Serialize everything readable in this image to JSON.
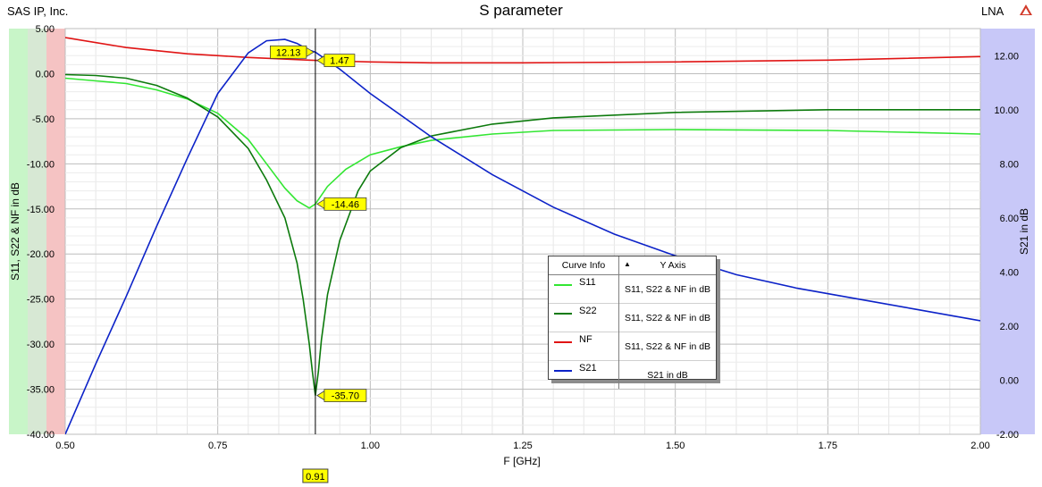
{
  "header": {
    "company": "SAS IP, Inc.",
    "design": "LNA"
  },
  "chart_data": {
    "type": "line",
    "title": "S parameter",
    "xlabel": "F [GHz]",
    "ylabel": "S11, S22 & NF in dB",
    "ylabel_right": "S21 in dB",
    "xlim": [
      0.5,
      2.0
    ],
    "ylim": [
      -40,
      5
    ],
    "ylim_right": [
      -2,
      13
    ],
    "grid": true,
    "x_ticks": [
      "0.50",
      "0.75",
      "1.00",
      "1.25",
      "1.50",
      "1.75",
      "2.00"
    ],
    "y_ticks": [
      "5.00",
      "0.00",
      "-5.00",
      "-10.00",
      "-15.00",
      "-20.00",
      "-25.00",
      "-30.00",
      "-35.00",
      "-40.00"
    ],
    "y_ticks_right": [
      "12.00",
      "10.00",
      "8.00",
      "6.00",
      "4.00",
      "2.00",
      "0.00",
      "-2.00"
    ],
    "cursor_x": 0.91,
    "cursor_label": "0.91",
    "series": [
      {
        "name": "S11",
        "axis": "left",
        "color": "#32e632",
        "x": [
          0.5,
          0.55,
          0.6,
          0.65,
          0.7,
          0.75,
          0.8,
          0.83,
          0.86,
          0.88,
          0.9,
          0.91,
          0.93,
          0.96,
          1.0,
          1.05,
          1.1,
          1.2,
          1.3,
          1.5,
          1.75,
          2.0
        ],
        "y": [
          -0.5,
          -0.8,
          -1.1,
          -1.8,
          -2.8,
          -4.4,
          -7.3,
          -10.0,
          -12.7,
          -14.1,
          -14.9,
          -14.46,
          -12.5,
          -10.6,
          -9.0,
          -8.1,
          -7.4,
          -6.7,
          -6.3,
          -6.2,
          -6.3,
          -6.7
        ]
      },
      {
        "name": "S22",
        "axis": "left",
        "color": "#0c7a0c",
        "x": [
          0.5,
          0.55,
          0.6,
          0.65,
          0.7,
          0.75,
          0.8,
          0.83,
          0.86,
          0.88,
          0.89,
          0.9,
          0.905,
          0.91,
          0.915,
          0.92,
          0.93,
          0.95,
          0.98,
          1.0,
          1.05,
          1.1,
          1.2,
          1.3,
          1.5,
          1.75,
          2.0
        ],
        "y": [
          -0.1,
          -0.2,
          -0.5,
          -1.3,
          -2.7,
          -4.8,
          -8.3,
          -11.8,
          -16.0,
          -21.0,
          -25.0,
          -30.0,
          -33.0,
          -35.7,
          -33.0,
          -29.5,
          -24.5,
          -18.5,
          -13.0,
          -10.8,
          -8.2,
          -6.9,
          -5.6,
          -4.9,
          -4.3,
          -4.0,
          -4.0
        ]
      },
      {
        "name": "NF",
        "axis": "left",
        "color": "#e01414",
        "x": [
          0.5,
          0.6,
          0.7,
          0.8,
          0.9,
          0.91,
          1.0,
          1.1,
          1.25,
          1.5,
          1.75,
          2.0
        ],
        "y": [
          4.0,
          2.9,
          2.2,
          1.8,
          1.5,
          1.47,
          1.3,
          1.2,
          1.2,
          1.3,
          1.5,
          1.9
        ]
      },
      {
        "name": "S21",
        "axis": "right",
        "color": "#0c22c8",
        "x": [
          0.5,
          0.55,
          0.6,
          0.65,
          0.7,
          0.75,
          0.8,
          0.83,
          0.86,
          0.88,
          0.9,
          0.91,
          0.95,
          1.0,
          1.1,
          1.2,
          1.3,
          1.4,
          1.5,
          1.6,
          1.7,
          1.8,
          1.9,
          2.0
        ],
        "y": [
          -2.0,
          0.6,
          3.1,
          5.7,
          8.2,
          10.6,
          12.1,
          12.55,
          12.6,
          12.45,
          12.2,
          12.13,
          11.5,
          10.6,
          9.0,
          7.6,
          6.4,
          5.4,
          4.6,
          3.9,
          3.4,
          3.0,
          2.6,
          2.2
        ]
      }
    ],
    "markers": [
      {
        "series": "S21",
        "label": "12.13"
      },
      {
        "series": "NF",
        "label": "1.47"
      },
      {
        "series": "S11",
        "label": "-14.46"
      },
      {
        "series": "S22",
        "label": "-35.70"
      }
    ],
    "legend": {
      "placement": "center-right",
      "col1_header": "Curve Info",
      "col2_header": "Y Axis",
      "rows": [
        {
          "name": "S11",
          "axis": "S11, S22 & NF in dB",
          "color": "#32e632"
        },
        {
          "name": "S22",
          "axis": "S11, S22 & NF in dB",
          "color": "#0c7a0c"
        },
        {
          "name": "NF",
          "axis": "S11, S22 & NF in dB",
          "color": "#e01414"
        },
        {
          "name": "S21",
          "axis": "S21 in dB",
          "color": "#0c22c8"
        }
      ]
    }
  }
}
